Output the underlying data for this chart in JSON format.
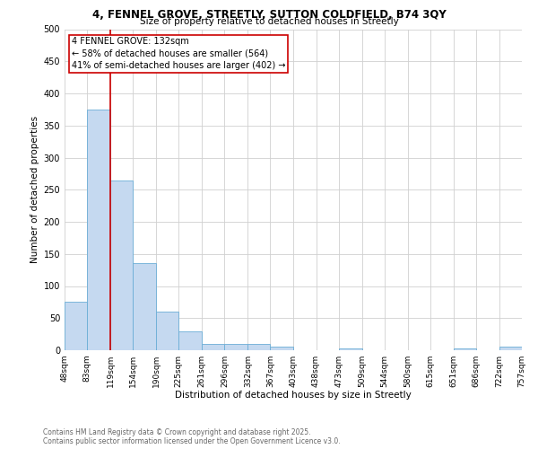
{
  "title_line1": "4, FENNEL GROVE, STREETLY, SUTTON COLDFIELD, B74 3QY",
  "title_line2": "Size of property relative to detached houses in Streetly",
  "xlabel": "Distribution of detached houses by size in Streetly",
  "ylabel": "Number of detached properties",
  "bar_values": [
    75,
    375,
    265,
    135,
    60,
    30,
    10,
    10,
    10,
    5,
    0,
    0,
    3,
    0,
    0,
    0,
    0,
    3,
    0,
    5
  ],
  "bin_labels": [
    "48sqm",
    "83sqm",
    "119sqm",
    "154sqm",
    "190sqm",
    "225sqm",
    "261sqm",
    "296sqm",
    "332sqm",
    "367sqm",
    "403sqm",
    "438sqm",
    "473sqm",
    "509sqm",
    "544sqm",
    "580sqm",
    "615sqm",
    "651sqm",
    "686sqm",
    "722sqm",
    "757sqm"
  ],
  "bar_edges": [
    48,
    83,
    119,
    154,
    190,
    225,
    261,
    296,
    332,
    367,
    403,
    438,
    473,
    509,
    544,
    580,
    615,
    651,
    686,
    722,
    757
  ],
  "bar_color": "#c5d9f0",
  "bar_edge_color": "#6baed6",
  "vline_x": 119,
  "vline_color": "#cc0000",
  "annotation_box_text": "4 FENNEL GROVE: 132sqm\n← 58% of detached houses are smaller (564)\n41% of semi-detached houses are larger (402) →",
  "grid_color": "#d0d0d0",
  "background_color": "#ffffff",
  "footer_line1": "Contains HM Land Registry data © Crown copyright and database right 2025.",
  "footer_line2": "Contains public sector information licensed under the Open Government Licence v3.0.",
  "ylim": [
    0,
    500
  ],
  "yticks": [
    0,
    50,
    100,
    150,
    200,
    250,
    300,
    350,
    400,
    450,
    500
  ]
}
